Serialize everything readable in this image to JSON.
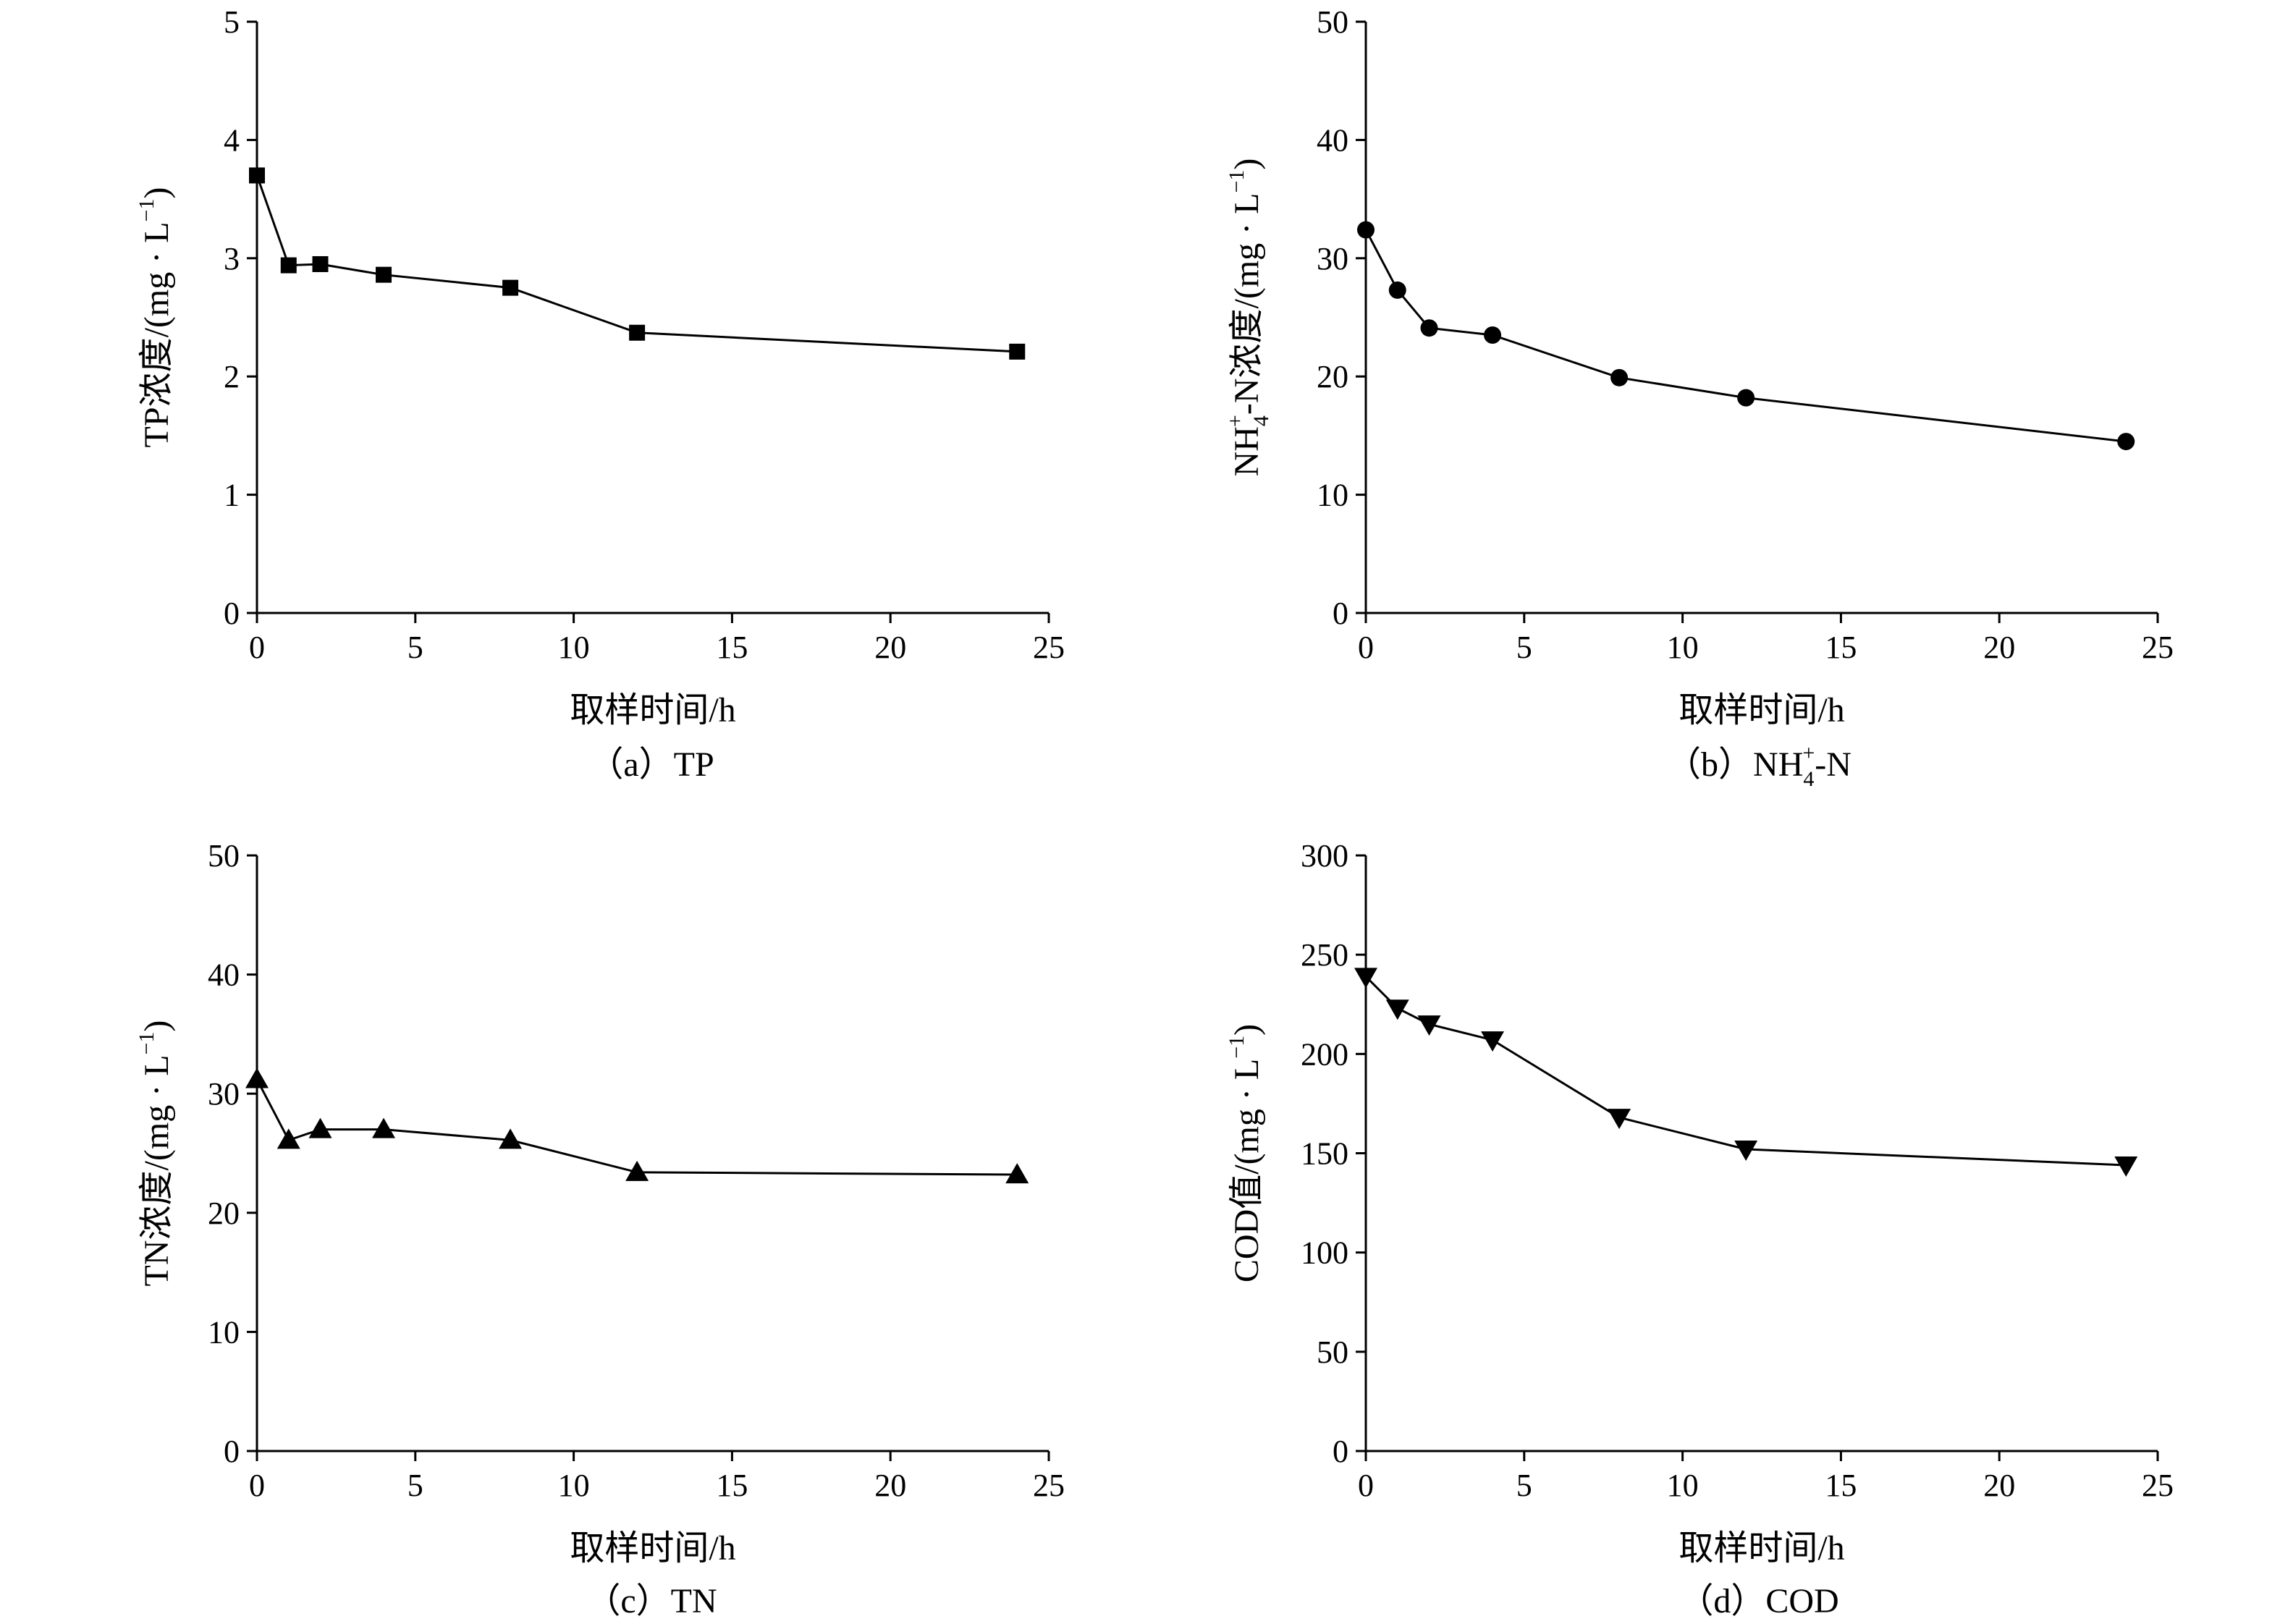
{
  "figure": {
    "xlabel": "取样时间/h",
    "xticks": [
      "0",
      "5",
      "10",
      "15",
      "20",
      "25"
    ]
  },
  "chart_data": [
    {
      "type": "line",
      "marker": "square",
      "caption": {
        "prefix": "（a）",
        "main": "TP",
        "sup": "",
        "sub": "",
        "tail": ""
      },
      "ylabel": {
        "base": "TP浓度/(mg · L",
        "sup": "−1",
        "tail": ")"
      },
      "xlim": [
        0,
        25
      ],
      "ylim": [
        0,
        5
      ],
      "yticks": [
        "0",
        "1",
        "2",
        "3",
        "4",
        "5"
      ],
      "x": [
        0,
        1,
        2,
        4,
        8,
        12,
        24
      ],
      "y": [
        3.7,
        2.94,
        2.95,
        2.86,
        2.75,
        2.37,
        2.21
      ]
    },
    {
      "type": "line",
      "marker": "circle",
      "caption": {
        "prefix": "（b）",
        "main": "NH",
        "sub": "4",
        "sup": "+",
        "tail": "-N"
      },
      "ylabel": {
        "pre": "NH",
        "sub": "4",
        "sup": "+",
        "post": "-N浓度/(mg · L",
        "sup2": "−1",
        "tail": ")"
      },
      "xlim": [
        0,
        25
      ],
      "ylim": [
        0,
        50
      ],
      "yticks": [
        "0",
        "10",
        "20",
        "30",
        "40",
        "50"
      ],
      "x": [
        0,
        1,
        2,
        4,
        8,
        12,
        24
      ],
      "y": [
        32.4,
        27.3,
        24.1,
        23.5,
        19.9,
        18.2,
        14.5
      ]
    },
    {
      "type": "line",
      "marker": "triangle-up",
      "caption": {
        "prefix": "（c）",
        "main": "TN",
        "sup": "",
        "sub": "",
        "tail": ""
      },
      "ylabel": {
        "base": "TN浓度/(mg · L",
        "sup": "−1",
        "tail": ")"
      },
      "xlim": [
        0,
        25
      ],
      "ylim": [
        0,
        50
      ],
      "yticks": [
        "0",
        "10",
        "20",
        "30",
        "40",
        "50"
      ],
      "x": [
        0,
        1,
        2,
        4,
        8,
        12,
        24
      ],
      "y": [
        31.2,
        26.1,
        27.0,
        27.0,
        26.1,
        23.4,
        23.2
      ]
    },
    {
      "type": "line",
      "marker": "triangle-down",
      "caption": {
        "prefix": "（d）",
        "main": "COD",
        "sup": "",
        "sub": "",
        "tail": ""
      },
      "ylabel": {
        "base": "COD值/(mg · L",
        "sup": "−1",
        "tail": ")"
      },
      "xlim": [
        0,
        25
      ],
      "ylim": [
        0,
        300
      ],
      "yticks": [
        "0",
        "50",
        "100",
        "150",
        "200",
        "250",
        "300"
      ],
      "x": [
        0,
        1,
        2,
        4,
        8,
        12,
        24
      ],
      "y": [
        239,
        223,
        215,
        207,
        168,
        152,
        144
      ]
    }
  ]
}
